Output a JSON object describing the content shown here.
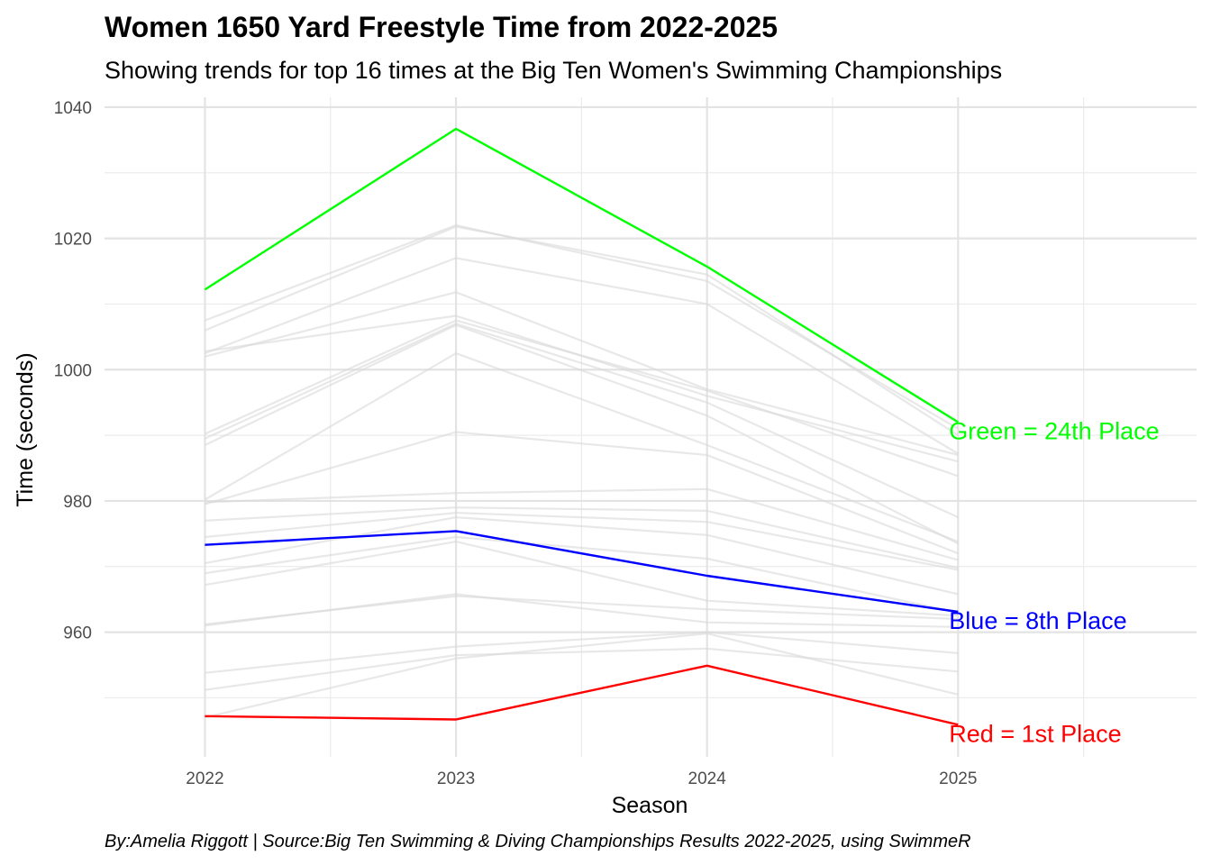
{
  "chart_data": {
    "type": "line",
    "title": "Women 1650 Yard Freestyle Time from 2022-2025",
    "subtitle": "Showing trends for top 16 times at the Big Ten Women's Swimming Championships",
    "xlabel": "Season",
    "ylabel": "Time (seconds)",
    "caption": "By:Amelia Riggott | Source:Big Ten Swimming & Diving Championships Results 2022-2025, using SwimmeR",
    "x": [
      2022,
      2023,
      2024,
      2025
    ],
    "x_ticks": [
      "2022",
      "2023",
      "2024",
      "2025"
    ],
    "xlim": [
      2021.6,
      2025.95
    ],
    "ylim": [
      941.0,
      1041.5
    ],
    "y_ticks": [
      960,
      980,
      1000,
      1020,
      1040
    ],
    "y_tick_labels": [
      "960",
      "980",
      "1000",
      "1020",
      "1040"
    ],
    "grid": true,
    "background_series": [
      [
        1007.5,
        1022.0,
        1013.5,
        991.0
      ],
      [
        1006.0,
        1021.8,
        1014.5,
        990.0
      ],
      [
        1002.5,
        1017.0,
        1010.0,
        987.2
      ],
      [
        1002.0,
        1011.8,
        997.0,
        987.0
      ],
      [
        1002.8,
        1008.2,
        996.0,
        986.0
      ],
      [
        990.2,
        1007.5,
        996.8,
        983.8
      ],
      [
        989.5,
        1007.0,
        995.0,
        977.5
      ],
      [
        988.5,
        1006.8,
        993.0,
        973.5
      ],
      [
        980.2,
        1002.5,
        988.5,
        973.8
      ],
      [
        979.5,
        990.5,
        987.0,
        972.0
      ],
      [
        979.8,
        981.2,
        981.8,
        971.0
      ],
      [
        977.0,
        979.0,
        978.5,
        969.8
      ],
      [
        974.5,
        978.2,
        976.8,
        969.5
      ],
      [
        970.5,
        977.5,
        974.8,
        965.8
      ],
      [
        969.0,
        974.5,
        971.2,
        963.0
      ],
      [
        967.2,
        973.8,
        964.8,
        962.5
      ],
      [
        961.2,
        965.5,
        963.5,
        962.0
      ],
      [
        961.0,
        965.8,
        961.5,
        960.8
      ],
      [
        953.8,
        957.8,
        960.0,
        956.8
      ],
      [
        951.2,
        956.5,
        957.5,
        954.0
      ],
      [
        947.0,
        956.0,
        959.8,
        950.5
      ]
    ],
    "series": [
      {
        "name": "Green = 24th Place",
        "color": "#00ff00",
        "values": [
          1012.2,
          1036.7,
          1015.7,
          992.0
        ]
      },
      {
        "name": "Blue = 8th Place",
        "color": "#0000ff",
        "values": [
          973.3,
          975.4,
          968.6,
          963.1
        ]
      },
      {
        "name": "Red = 1st Place",
        "color": "#ff0000",
        "values": [
          947.2,
          946.7,
          954.9,
          945.9
        ]
      }
    ],
    "background_color": "#d9d9d9"
  }
}
